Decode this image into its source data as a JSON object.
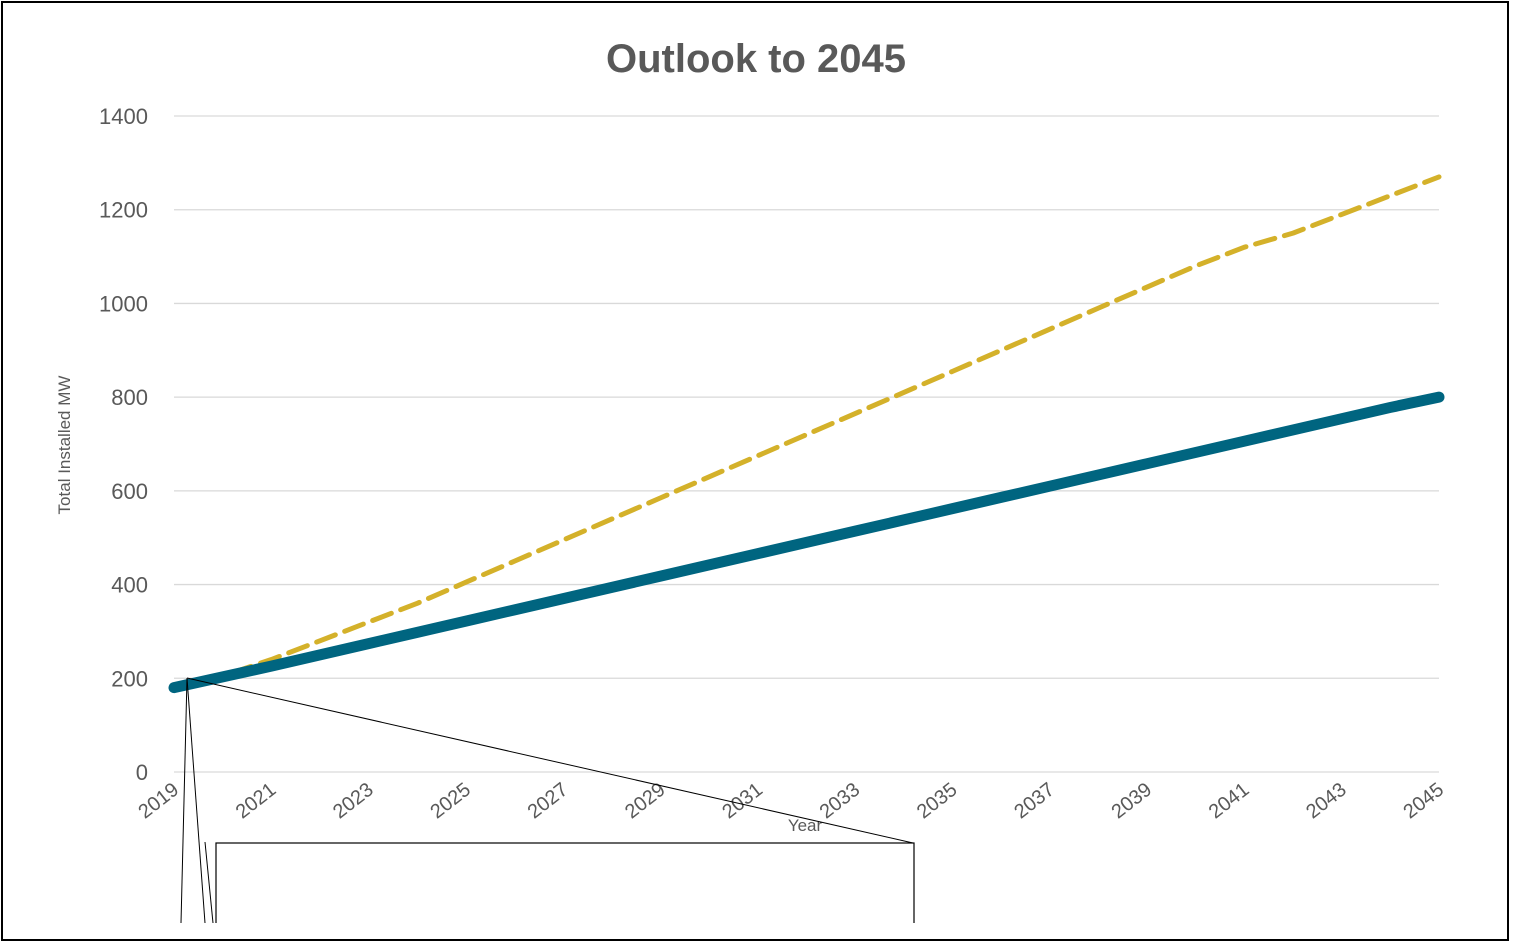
{
  "chart_data": {
    "type": "line",
    "title": "Outlook to 2045",
    "xlabel": "Year",
    "ylabel": "Total Installed MW",
    "x": [
      2019,
      2020,
      2021,
      2022,
      2023,
      2024,
      2025,
      2026,
      2027,
      2028,
      2029,
      2030,
      2031,
      2032,
      2033,
      2034,
      2035,
      2036,
      2037,
      2038,
      2039,
      2040,
      2041,
      2042,
      2043,
      2044,
      2045
    ],
    "x_ticks": [
      "2019",
      "2021",
      "2023",
      "2025",
      "2027",
      "2029",
      "2031",
      "2033",
      "2035",
      "2037",
      "2039",
      "2041",
      "2043",
      "2045"
    ],
    "y_ticks": [
      "0",
      "200",
      "400",
      "600",
      "800",
      "1000",
      "1200",
      "1400"
    ],
    "ylim": [
      0,
      1400
    ],
    "xlim": [
      2019,
      2045
    ],
    "grid": true,
    "series": [
      {
        "style": "dashed",
        "color": "#D4B12A",
        "values": [
          180,
          205,
          240,
          280,
          320,
          360,
          405,
          450,
          495,
          540,
          585,
          630,
          675,
          720,
          765,
          810,
          855,
          900,
          945,
          990,
          1035,
          1080,
          1120,
          1150,
          1190,
          1230,
          1270
        ]
      },
      {
        "style": "solid",
        "color": "#006580",
        "values": [
          180,
          203,
          226,
          250,
          274,
          298,
          322,
          346,
          370,
          394,
          418,
          442,
          466,
          490,
          514,
          538,
          562,
          586,
          610,
          634,
          658,
          682,
          706,
          730,
          754,
          778,
          800
        ]
      }
    ]
  }
}
